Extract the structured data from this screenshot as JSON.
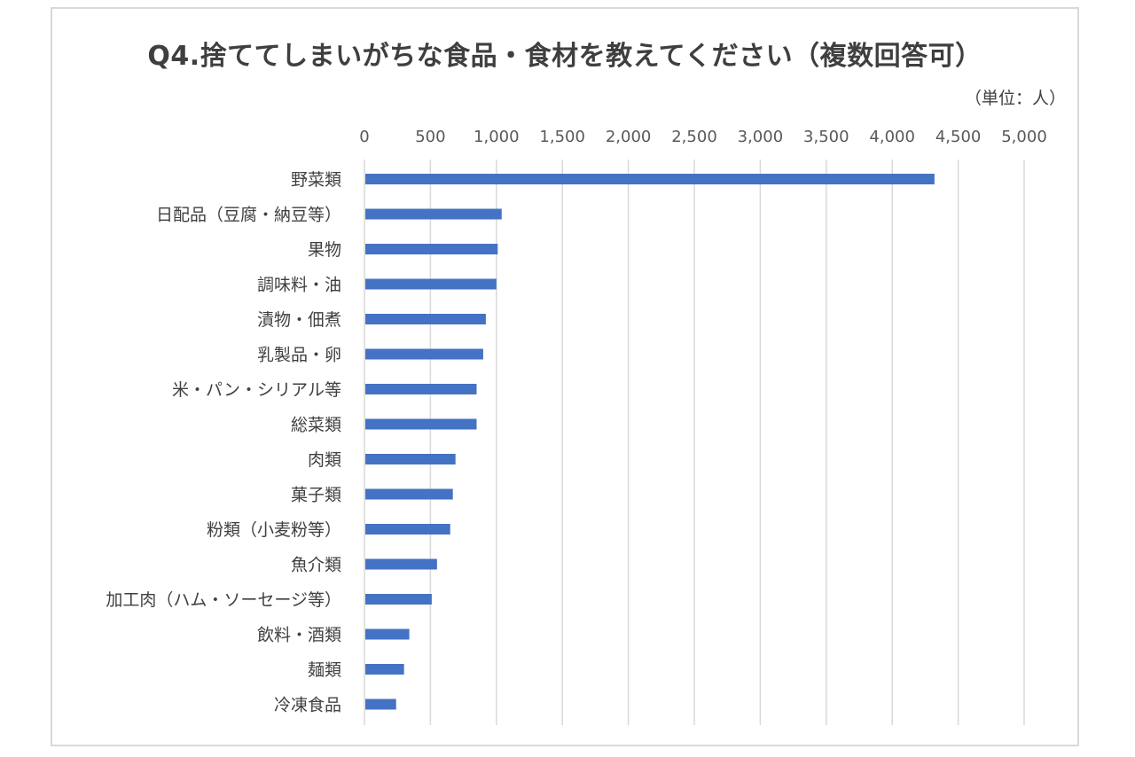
{
  "chart_data": {
    "type": "bar",
    "orientation": "horizontal",
    "title": "Q4.捨ててしまいがちな食品・食材を教えてください（複数回答可）",
    "unit_label": "（単位：人）",
    "categories": [
      "野菜類",
      "日配品（豆腐・納豆等）",
      "果物",
      "調味料・油",
      "漬物・佃煮",
      "乳製品・卵",
      "米・パン・シリアル等",
      "総菜類",
      "肉類",
      "菓子類",
      "粉類（小麦粉等）",
      "魚介類",
      "加工肉（ハム・ソーセージ等）",
      "飲料・酒類",
      "麺類",
      "冷凍食品"
    ],
    "values": [
      4320,
      1040,
      1010,
      1000,
      920,
      900,
      850,
      850,
      690,
      670,
      650,
      550,
      510,
      340,
      300,
      240
    ],
    "xlim": [
      0,
      5000
    ],
    "x_ticks": [
      0,
      500,
      1000,
      1500,
      2000,
      2500,
      3000,
      3500,
      4000,
      4500,
      5000
    ],
    "x_tick_labels": [
      "0",
      "500",
      "1,000",
      "1,500",
      "2,000",
      "2,500",
      "3,000",
      "3,500",
      "4,000",
      "4,500",
      "5,000"
    ],
    "x_axis_position": "top",
    "grid": true,
    "legend": "none",
    "bar_color": "#4472c4",
    "grid_color": "#d9d9d9"
  }
}
